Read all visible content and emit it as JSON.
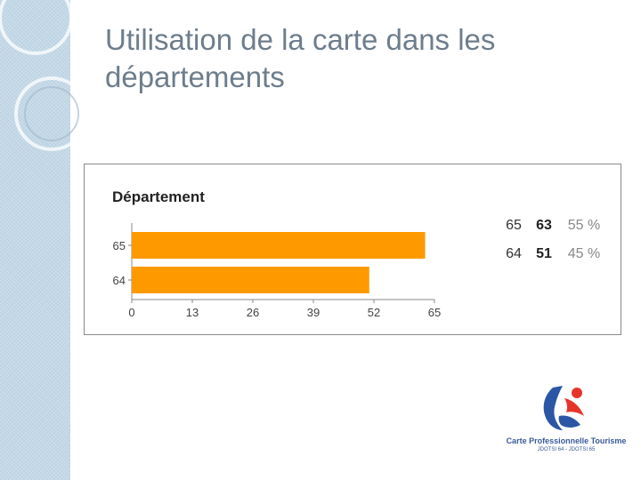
{
  "slide": {
    "title_line1": "Utilisation de la carte dans les",
    "title_line2": "départements"
  },
  "logo": {
    "line1": "Carte Professionnelle Tourisme",
    "line2": "JDOTSI 64 - JDOTSI 65"
  },
  "colors": {
    "bar": "#ff9900",
    "title": "#6d7d8c",
    "sidebar": "#bcd3e3"
  },
  "chart_data": {
    "type": "bar",
    "orientation": "horizontal",
    "title": "Département",
    "categories": [
      "65",
      "64"
    ],
    "values": [
      63,
      51
    ],
    "xlim": [
      0,
      65
    ],
    "xticks": [
      "0",
      "13",
      "26",
      "39",
      "52",
      "65"
    ],
    "grid": false,
    "legend": "none",
    "side_table": [
      {
        "label": "65",
        "count": "63",
        "percent": "55 %"
      },
      {
        "label": "64",
        "count": "51",
        "percent": "45 %"
      }
    ]
  }
}
